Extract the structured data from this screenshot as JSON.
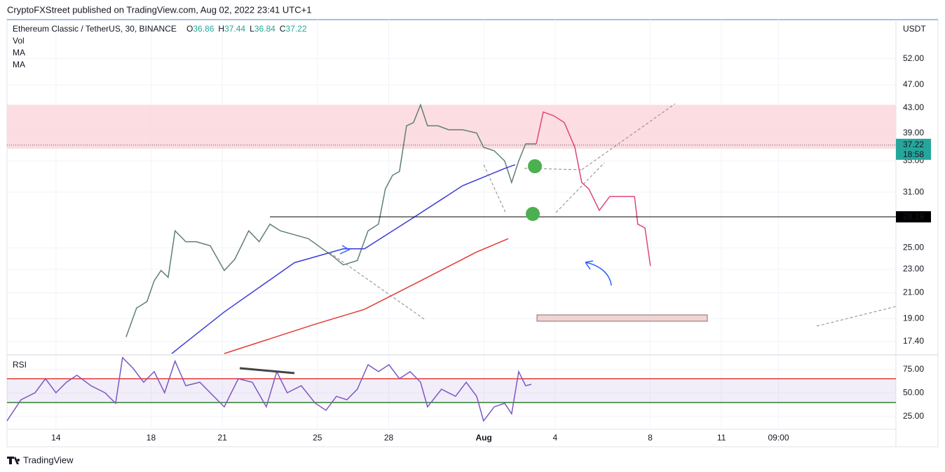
{
  "header": {
    "publisher": "CryptoFXStreet published on TradingView.com, Aug 02, 2022 23:41 UTC+1"
  },
  "footer": {
    "brand": "TradingView"
  },
  "chart_data": [
    {
      "type": "line",
      "title": "Ethereum Classic / TetherUS, 30, BINANCE",
      "ohlc": [
        {
          "label": "O",
          "value": 36.86
        },
        {
          "label": "H",
          "value": 37.44
        },
        {
          "label": "L",
          "value": 36.84
        },
        {
          "label": "C",
          "value": 37.22
        }
      ],
      "indicators": [
        "Vol",
        "MA",
        "MA"
      ],
      "y_unit": "USDT",
      "log_scale": true,
      "grid": true,
      "xlim": [
        11.94,
        49.34
      ],
      "xticks": [
        14,
        18,
        21,
        25,
        28,
        {
          "value": 32,
          "label": "Aug"
        },
        {
          "value": 35,
          "label": "4"
        },
        {
          "value": 39,
          "label": "8"
        },
        {
          "value": 42,
          "label": "11"
        },
        {
          "value": 44.4,
          "label": "09:00"
        }
      ],
      "ylim": [
        16.56,
        60.5
      ],
      "yticks": [
        {
          "value": 52,
          "label": "52.00"
        },
        {
          "value": 47,
          "label": "47.00"
        },
        {
          "value": 43,
          "label": "43.00"
        },
        {
          "value": 39,
          "label": "39.00"
        },
        {
          "value": 35,
          "label": "35.00"
        },
        {
          "value": 31,
          "label": "31.00"
        },
        {
          "value": 25,
          "label": "25.00"
        },
        {
          "value": 23,
          "label": "23.00"
        },
        {
          "value": 21,
          "label": "21.00"
        },
        {
          "value": 19,
          "label": "19.00"
        },
        {
          "value": 17.4,
          "label": "17.40"
        }
      ],
      "resistance_zone": {
        "low": 36.7,
        "high": 43.5,
        "color": "#fbd7dc"
      },
      "level": {
        "value": 28.19,
        "color": "#000000"
      },
      "last_price": {
        "value": 37.22,
        "countdown": "18:58",
        "color": "#26a69a"
      },
      "series": [
        {
          "color": "#5f7f78",
          "x": [
            16.95,
            17.39,
            17.83,
            18.13,
            18.42,
            18.72,
            19.01,
            19.46,
            19.9,
            20.49,
            21.08,
            21.52,
            22.11,
            22.55,
            23.0,
            23.44,
            24.03,
            24.62,
            25.21,
            25.65,
            26.09,
            26.68,
            27.13,
            27.57,
            27.86,
            28.16,
            28.45,
            28.75,
            29.04,
            29.34,
            29.63,
            30.08,
            30.52,
            31.11,
            31.7,
            31.99,
            32.44,
            32.88,
            33.17,
            33.47,
            33.76,
            34.21
          ],
          "values": [
            17.7,
            19.8,
            20.3,
            22.0,
            22.9,
            22.3,
            26.7,
            25.6,
            25.6,
            25.2,
            22.9,
            23.9,
            26.7,
            25.6,
            27.4,
            26.7,
            26.3,
            25.9,
            24.9,
            24.2,
            23.4,
            23.8,
            26.7,
            27.4,
            31.4,
            33.1,
            33.6,
            40.1,
            40.6,
            43.5,
            40.1,
            40.1,
            39.5,
            39.5,
            39.0,
            36.9,
            36.4,
            35.0,
            32.2,
            35.0,
            37.4,
            37.4
          ]
        },
        {
          "color": "#e0457b",
          "x": [
            34.21,
            34.5,
            34.94,
            35.39,
            35.83,
            36.12,
            36.42,
            36.86,
            37.3,
            37.89,
            38.34,
            38.48,
            38.78,
            39.01
          ],
          "values": [
            37.4,
            42.3,
            41.7,
            40.6,
            36.9,
            32.2,
            31.4,
            28.9,
            30.5,
            30.5,
            30.5,
            27.4,
            27.0,
            23.3
          ]
        },
        {
          "color": "#3c3cd8",
          "x": [
            18.87,
            21.08,
            24.03,
            26.09,
            26.98,
            29.04,
            31.11,
            32.88,
            33.32
          ],
          "values": [
            16.6,
            19.5,
            23.6,
            24.9,
            24.9,
            28.1,
            31.8,
            34.0,
            34.5
          ]
        },
        {
          "color": "#e53935",
          "x": [
            21.08,
            24.91,
            26.98,
            29.34,
            31.7,
            33.03
          ],
          "values": [
            16.6,
            18.6,
            19.7,
            22.0,
            24.6,
            25.9
          ]
        }
      ]
    },
    {
      "type": "line",
      "title": "RSI",
      "grid": true,
      "ylim": [
        11.6,
        89.9
      ],
      "yticks": [
        {
          "value": 75,
          "label": "75.00"
        },
        {
          "value": 50,
          "label": "50.00"
        },
        {
          "value": 25,
          "label": "25.00"
        }
      ],
      "bands": [
        {
          "value": 65.3,
          "color": "#e53935"
        },
        {
          "value": 40,
          "color": "#2e7d32"
        }
      ],
      "series": [
        {
          "color": "#7e57c2",
          "x": [
            11.94,
            12.53,
            13.12,
            13.56,
            14.0,
            14.44,
            14.88,
            15.47,
            16.06,
            16.51,
            16.8,
            17.24,
            17.69,
            18.13,
            18.57,
            19.01,
            19.46,
            20.05,
            20.64,
            21.08,
            21.67,
            22.26,
            22.85,
            23.29,
            23.73,
            24.32,
            24.91,
            25.36,
            25.8,
            26.24,
            26.68,
            27.13,
            27.57,
            28.01,
            28.45,
            28.9,
            29.34,
            29.63,
            30.22,
            30.81,
            31.26,
            31.7,
            31.99,
            32.44,
            32.88,
            33.17,
            33.47,
            33.76,
            34.0
          ],
          "values": [
            20.5,
            42.9,
            50.4,
            65.3,
            50.4,
            61.6,
            69.0,
            57.8,
            50.4,
            39.2,
            87.7,
            76.5,
            61.6,
            72.8,
            50.4,
            84.0,
            57.8,
            61.6,
            46.6,
            35.4,
            65.3,
            61.6,
            35.4,
            72.8,
            50.4,
            57.8,
            39.2,
            31.7,
            46.6,
            42.9,
            54.1,
            80.2,
            72.8,
            80.2,
            65.3,
            72.8,
            61.6,
            35.4,
            54.1,
            46.6,
            61.6,
            46.6,
            20.5,
            35.4,
            39.2,
            28.0,
            72.8,
            57.8,
            59.3
          ]
        }
      ]
    }
  ]
}
